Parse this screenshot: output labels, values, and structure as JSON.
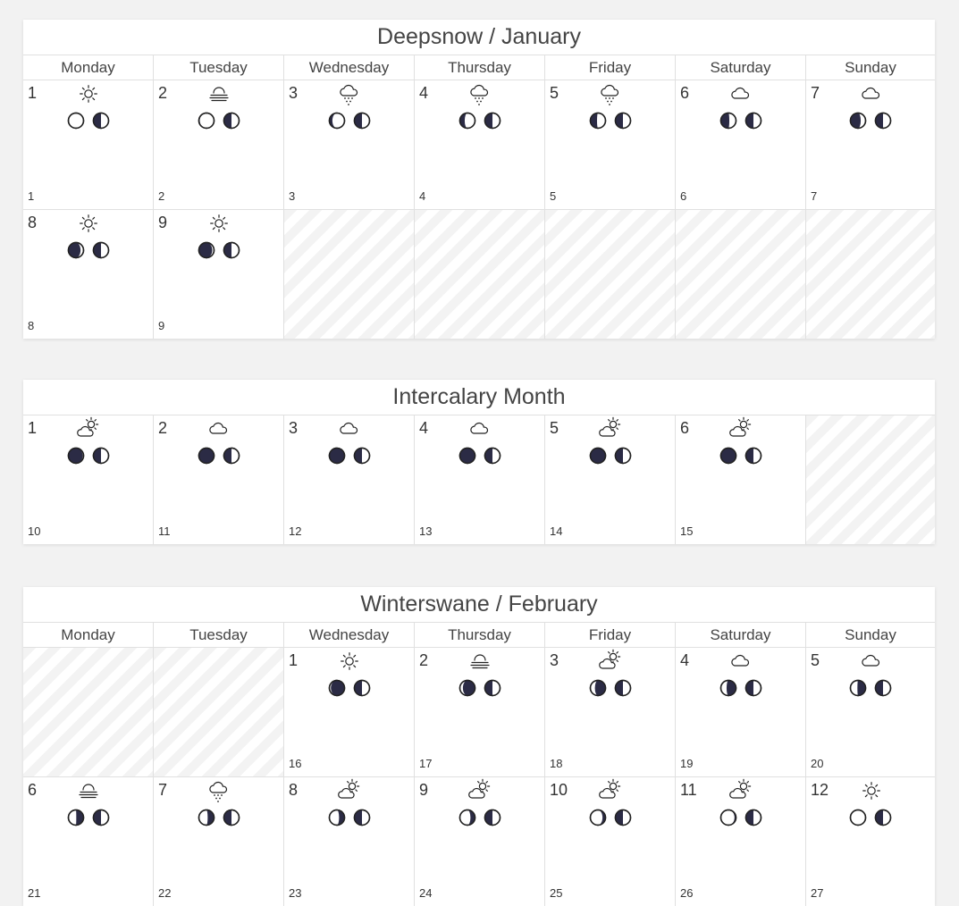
{
  "colors": {
    "moon_dark": "#2b2b45",
    "moon_light": "#ffffff",
    "stroke": "#222222"
  },
  "months": [
    {
      "title": "Deepsnow / January",
      "top": 0,
      "show_weekdays": true,
      "weekdays": [
        "Monday",
        "Tuesday",
        "Wednesday",
        "Thursday",
        "Friday",
        "Saturday",
        "Sunday"
      ],
      "weeks": [
        [
          {
            "day": "1",
            "weather": "sun-icon",
            "moons": [
              0.0,
              0.25
            ],
            "yearday": "1"
          },
          {
            "day": "2",
            "weather": "fog-icon",
            "moons": [
              0.03,
              0.25
            ],
            "yearday": "2"
          },
          {
            "day": "3",
            "weather": "snow-icon",
            "moons": [
              0.1,
              0.25
            ],
            "yearday": "3"
          },
          {
            "day": "4",
            "weather": "snow-icon",
            "moons": [
              0.16,
              0.25
            ],
            "yearday": "4"
          },
          {
            "day": "5",
            "weather": "snow-icon",
            "moons": [
              0.22,
              0.25
            ],
            "yearday": "5"
          },
          {
            "day": "6",
            "weather": "cloud-icon",
            "moons": [
              0.28,
              0.25
            ],
            "yearday": "6"
          },
          {
            "day": "7",
            "weather": "cloud-icon",
            "moons": [
              0.34,
              0.25
            ],
            "yearday": "7"
          }
        ],
        [
          {
            "day": "8",
            "weather": "sun-icon",
            "moons": [
              0.4,
              0.25
            ],
            "yearday": "8"
          },
          {
            "day": "9",
            "weather": "sun-icon",
            "moons": [
              0.44,
              0.25
            ],
            "yearday": "9"
          },
          null,
          null,
          null,
          null,
          null
        ]
      ]
    },
    {
      "title": "Intercalary Month",
      "show_weekdays": false,
      "weekdays": [],
      "weeks": [
        [
          {
            "day": "1",
            "weather": "partly-sunny-icon",
            "moons": [
              0.47,
              0.25
            ],
            "yearday": "10"
          },
          {
            "day": "2",
            "weather": "cloud-icon",
            "moons": [
              0.49,
              0.25
            ],
            "yearday": "11"
          },
          {
            "day": "3",
            "weather": "cloud-icon",
            "moons": [
              0.5,
              0.25
            ],
            "yearday": "12"
          },
          {
            "day": "4",
            "weather": "cloud-icon",
            "moons": [
              0.5,
              0.25
            ],
            "yearday": "13"
          },
          {
            "day": "5",
            "weather": "partly-sunny-icon",
            "moons": [
              0.5,
              0.25
            ],
            "yearday": "14"
          },
          {
            "day": "6",
            "weather": "partly-sunny-icon",
            "moons": [
              0.5,
              0.25
            ],
            "yearday": "15"
          },
          null
        ]
      ]
    },
    {
      "title": "Winterswane / February",
      "show_weekdays": true,
      "weekdays": [
        "Monday",
        "Tuesday",
        "Wednesday",
        "Thursday",
        "Friday",
        "Saturday",
        "Sunday"
      ],
      "weeks": [
        [
          null,
          null,
          {
            "day": "1",
            "weather": "sun-icon",
            "moons": [
              0.55,
              0.25
            ],
            "yearday": "16"
          },
          {
            "day": "2",
            "weather": "fog-icon",
            "moons": [
              0.6,
              0.25
            ],
            "yearday": "17"
          },
          {
            "day": "3",
            "weather": "partly-sunny-icon",
            "moons": [
              0.65,
              0.25
            ],
            "yearday": "18"
          },
          {
            "day": "4",
            "weather": "cloud-icon",
            "moons": [
              0.69,
              0.25
            ],
            "yearday": "19"
          },
          {
            "day": "5",
            "weather": "cloud-icon",
            "moons": [
              0.73,
              0.25
            ],
            "yearday": "20"
          }
        ],
        [
          {
            "day": "6",
            "weather": "fog-icon",
            "moons": [
              0.76,
              0.25
            ],
            "yearday": "21"
          },
          {
            "day": "7",
            "weather": "snow-icon",
            "moons": [
              0.79,
              0.25
            ],
            "yearday": "22"
          },
          {
            "day": "8",
            "weather": "partly-sunny-icon",
            "moons": [
              0.82,
              0.25
            ],
            "yearday": "23"
          },
          {
            "day": "9",
            "weather": "partly-sunny-icon",
            "moons": [
              0.85,
              0.25
            ],
            "yearday": "24"
          },
          {
            "day": "10",
            "weather": "partly-sunny-icon",
            "moons": [
              0.9,
              0.25
            ],
            "yearday": "25"
          },
          {
            "day": "11",
            "weather": "partly-sunny-icon",
            "moons": [
              0.95,
              0.25
            ],
            "yearday": "26"
          },
          {
            "day": "12",
            "weather": "sun-icon",
            "moons": [
              0.99,
              0.25
            ],
            "yearday": "27"
          }
        ]
      ]
    }
  ]
}
